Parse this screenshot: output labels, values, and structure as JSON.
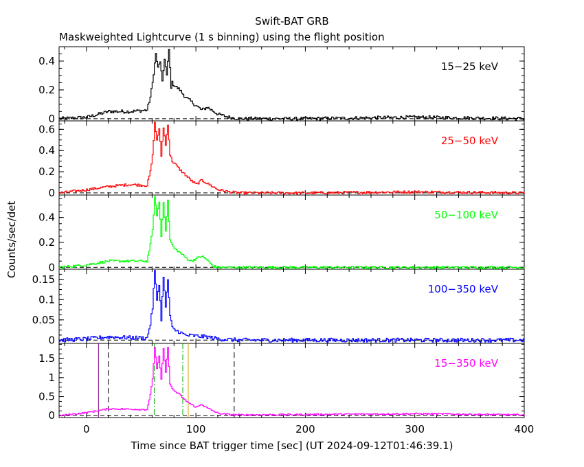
{
  "title": "Swift-BAT GRB",
  "subtitle": "Maskweighted Lightcurve (1 s binning) using the flight position",
  "chart_data": {
    "type": "line",
    "xlabel": "Time since BAT trigger time [sec] (UT 2024-09-12T01:46:39.1)",
    "ylabel": "Counts/sec/det",
    "xlim": [
      -25,
      400
    ],
    "xticks": [
      0,
      100,
      200,
      300,
      400
    ],
    "panels": [
      {
        "name": "15−25 keV",
        "color": "#000000",
        "ylim": [
          -0.015,
          0.5
        ],
        "yticks": [
          0,
          0.2,
          0.4
        ],
        "ytick_labels": [
          "0",
          "0.2",
          "0.4"
        ],
        "x": [
          -25,
          0,
          20,
          40,
          55,
          58,
          60,
          63,
          65,
          67,
          69,
          71,
          73,
          75,
          77,
          78,
          80,
          85,
          90,
          95,
          100,
          105,
          110,
          120,
          130,
          140,
          200,
          300,
          400
        ],
        "values": [
          0.0,
          0.01,
          0.05,
          0.05,
          0.06,
          0.15,
          0.25,
          0.45,
          0.35,
          0.4,
          0.25,
          0.42,
          0.3,
          0.48,
          0.22,
          0.25,
          0.23,
          0.2,
          0.15,
          0.12,
          0.09,
          0.06,
          0.08,
          0.03,
          0.01,
          0.0,
          0.0,
          0.01,
          0.0
        ],
        "noise": 0.012
      },
      {
        "name": "25−50 keV",
        "color": "#ff0000",
        "ylim": [
          -0.02,
          0.68
        ],
        "yticks": [
          0,
          0.2,
          0.4,
          0.6
        ],
        "ytick_labels": [
          "0",
          "0.2",
          "0.4",
          "0.6"
        ],
        "x": [
          -25,
          0,
          20,
          40,
          55,
          58,
          60,
          62,
          64,
          66,
          68,
          70,
          72,
          74,
          76,
          78,
          80,
          85,
          90,
          95,
          100,
          105,
          110,
          120,
          130,
          140,
          200,
          300,
          400
        ],
        "values": [
          0.0,
          0.03,
          0.06,
          0.08,
          0.07,
          0.2,
          0.35,
          0.66,
          0.5,
          0.6,
          0.35,
          0.62,
          0.45,
          0.65,
          0.36,
          0.3,
          0.28,
          0.22,
          0.17,
          0.12,
          0.08,
          0.12,
          0.09,
          0.03,
          0.01,
          0.0,
          0.0,
          0.01,
          0.0
        ],
        "noise": 0.012
      },
      {
        "name": "50−100 keV",
        "color": "#00ff00",
        "ylim": [
          -0.015,
          0.58
        ],
        "yticks": [
          0,
          0.2,
          0.4
        ],
        "ytick_labels": [
          "0",
          "0.2",
          "0.4"
        ],
        "x": [
          -25,
          0,
          20,
          40,
          55,
          58,
          60,
          62,
          64,
          66,
          68,
          70,
          72,
          74,
          76,
          78,
          80,
          85,
          90,
          95,
          100,
          105,
          110,
          115,
          120,
          140,
          200,
          300,
          400
        ],
        "values": [
          0.0,
          0.02,
          0.05,
          0.05,
          0.05,
          0.18,
          0.3,
          0.56,
          0.42,
          0.52,
          0.25,
          0.52,
          0.3,
          0.53,
          0.22,
          0.18,
          0.15,
          0.12,
          0.08,
          0.05,
          0.07,
          0.09,
          0.06,
          0.01,
          0.0,
          0.0,
          0.0,
          0.0,
          0.0
        ],
        "noise": 0.01
      },
      {
        "name": "100−350 keV",
        "color": "#0000ff",
        "ylim": [
          -0.008,
          0.175
        ],
        "yticks": [
          0,
          0.05,
          0.1,
          0.15
        ],
        "ytick_labels": [
          "0",
          "0.05",
          "0.1",
          "0.15"
        ],
        "x": [
          -25,
          0,
          20,
          40,
          55,
          58,
          60,
          62,
          64,
          66,
          68,
          70,
          72,
          74,
          76,
          78,
          80,
          85,
          90,
          100,
          110,
          120,
          140,
          200,
          300,
          400
        ],
        "values": [
          0.0,
          0.003,
          0.008,
          0.006,
          0.005,
          0.04,
          0.08,
          0.17,
          0.1,
          0.14,
          0.05,
          0.16,
          0.08,
          0.15,
          0.06,
          0.03,
          0.025,
          0.02,
          0.012,
          0.01,
          0.008,
          0.003,
          0.0,
          0.0,
          0.0,
          0.0
        ],
        "noise": 0.005
      },
      {
        "name": "15−350 keV",
        "color": "#ff00ff",
        "ylim": [
          -0.05,
          1.9
        ],
        "yticks": [
          0,
          0.5,
          1,
          1.5
        ],
        "ytick_labels": [
          "0",
          "0.5",
          "1",
          "1.5"
        ],
        "x": [
          -25,
          0,
          20,
          40,
          55,
          58,
          60,
          62,
          64,
          66,
          68,
          70,
          72,
          74,
          76,
          78,
          80,
          85,
          90,
          95,
          100,
          105,
          110,
          120,
          130,
          140,
          200,
          300,
          400
        ],
        "values": [
          0.0,
          0.08,
          0.18,
          0.17,
          0.16,
          0.55,
          0.95,
          1.8,
          1.25,
          1.55,
          0.95,
          1.75,
          1.15,
          1.78,
          0.85,
          0.7,
          0.65,
          0.55,
          0.4,
          0.3,
          0.22,
          0.3,
          0.2,
          0.06,
          0.03,
          0.02,
          0.03,
          0.05,
          0.02
        ],
        "noise": 0.02,
        "vlines": [
          {
            "x": 11,
            "color": "#800080",
            "style": "solid"
          },
          {
            "x": 20,
            "color": "#000000",
            "style": "dashed"
          },
          {
            "x": 135,
            "color": "#000000",
            "style": "dashed"
          },
          {
            "x": 62,
            "color": "#00aa00",
            "style": "dashdot"
          },
          {
            "x": 88,
            "color": "#00aa00",
            "style": "dashdot"
          },
          {
            "x": 93,
            "color": "#d4a000",
            "style": "solid"
          }
        ]
      }
    ]
  }
}
